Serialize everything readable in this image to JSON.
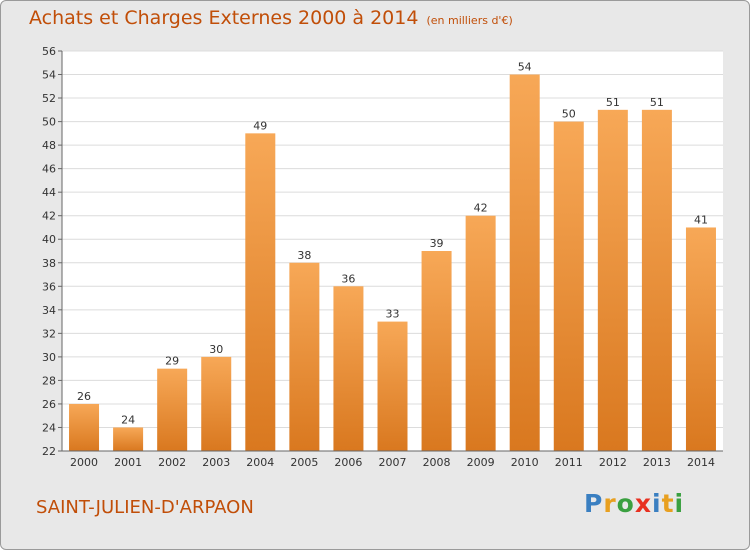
{
  "header": {
    "title": "Achats et Charges Externes 2000 à 2014",
    "unit": "(en milliers d'€)"
  },
  "commune": "SAINT-JULIEN-D'ARPAON",
  "logo": {
    "letters": [
      "P",
      "r",
      "o",
      "x",
      "i",
      "t",
      "i"
    ],
    "colors": [
      "#3a7fc1",
      "#e8a020",
      "#3aa040",
      "#e83020",
      "#3a7fc1",
      "#e8a020",
      "#3aa040"
    ]
  },
  "colors": {
    "bar_light": "#f7a857",
    "bar_dark": "#d9781f",
    "title": "#c14e08",
    "plot_bg": "#ffffff",
    "grid": "#dcdcdc"
  },
  "chart_data": {
    "type": "bar",
    "categories": [
      "2000",
      "2001",
      "2002",
      "2003",
      "2004",
      "2005",
      "2006",
      "2007",
      "2008",
      "2009",
      "2010",
      "2011",
      "2012",
      "2013",
      "2014"
    ],
    "values": [
      26,
      24,
      29,
      30,
      49,
      38,
      36,
      33,
      39,
      42,
      54,
      50,
      51,
      51,
      41
    ],
    "ylim": [
      22,
      56
    ],
    "yticks": [
      22,
      24,
      26,
      28,
      30,
      32,
      34,
      36,
      38,
      40,
      42,
      44,
      46,
      48,
      50,
      52,
      54,
      56
    ],
    "grid": true,
    "legend": "none"
  }
}
